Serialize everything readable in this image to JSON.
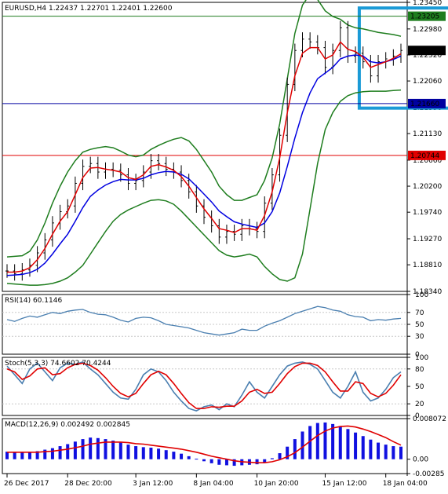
{
  "chart_data": {
    "type": "line",
    "symbol": "EURUSD",
    "timeframe": "H4",
    "header": "EURUSD,H4  1.22437 1.22701 1.22401 1.22600",
    "x_ticks": [
      "26 Dec 2017",
      "28 Dec 20:00",
      "3 Jan 12:00",
      "8 Jan 04:00",
      "10 Jan 20:00",
      "15 Jan 12:00",
      "18 Jan 04:00"
    ],
    "price_axis": {
      "ylim": [
        1.1834,
        1.2345
      ],
      "ticks": [
        {
          "label": "1.23450",
          "value": 1.2345
        },
        {
          "label": "1.22980",
          "value": 1.2298
        },
        {
          "label": "1.22520",
          "value": 1.2252
        },
        {
          "label": "1.22060",
          "value": 1.2206
        },
        {
          "label": "1.21590",
          "value": 1.2159
        },
        {
          "label": "1.21130",
          "value": 1.2113
        },
        {
          "label": "1.20660",
          "value": 1.2066
        },
        {
          "label": "1.20200",
          "value": 1.202
        },
        {
          "label": "1.19740",
          "value": 1.1974
        },
        {
          "label": "1.19270",
          "value": 1.1927
        },
        {
          "label": "1.18810",
          "value": 1.1881
        },
        {
          "label": "1.18340",
          "value": 1.1834
        }
      ]
    },
    "levels": [
      {
        "label": "1.23205",
        "value": 1.23205,
        "color": "#1e7d1e",
        "bg": "#1e7d1e"
      },
      {
        "label": "1.22600",
        "value": 1.226,
        "color": "#000000",
        "bg": "#000000"
      },
      {
        "label": "1.21660",
        "value": 1.2166,
        "color": "#0000a0",
        "bg": "#0000a0"
      },
      {
        "label": "1.20744",
        "value": 1.20744,
        "color": "#e00000",
        "bg": "#e00000"
      }
    ],
    "highlight_box": {
      "x_from": 46.5,
      "x_to": 82,
      "y_from": 1.2335,
      "y_to": 1.2158,
      "color": "#1a9ad6"
    },
    "price": {
      "close": [
        1.187,
        1.1865,
        1.1872,
        1.188,
        1.1902,
        1.1925,
        1.1955,
        1.1975,
        1.1985,
        1.2025,
        1.2055,
        1.206,
        1.2045,
        1.205,
        1.2048,
        1.204,
        1.2025,
        1.203,
        1.2045,
        1.2065,
        1.206,
        1.205,
        1.2045,
        1.203,
        1.201,
        1.1985,
        1.1965,
        1.195,
        1.193,
        1.194,
        1.1935,
        1.195,
        1.1945,
        1.194,
        1.199,
        1.204,
        1.211,
        1.22,
        1.226,
        1.228,
        1.2275,
        1.2265,
        1.223,
        1.226,
        1.23,
        1.225,
        1.2255,
        1.224,
        1.2215,
        1.224,
        1.2245,
        1.225,
        1.226
      ],
      "ma_fast": [
        1.1868,
        1.1868,
        1.187,
        1.1876,
        1.189,
        1.191,
        1.1935,
        1.1958,
        1.1975,
        1.2005,
        1.2035,
        1.2052,
        1.2053,
        1.205,
        1.2048,
        1.2045,
        1.2035,
        1.2032,
        1.204,
        1.2055,
        1.2058,
        1.2054,
        1.2048,
        1.2037,
        1.202,
        1.2,
        1.198,
        1.1963,
        1.1945,
        1.1942,
        1.1938,
        1.1945,
        1.1945,
        1.1942,
        1.1968,
        1.201,
        1.207,
        1.215,
        1.2215,
        1.2255,
        1.2265,
        1.2265,
        1.2245,
        1.2252,
        1.2275,
        1.2262,
        1.2258,
        1.2248,
        1.223,
        1.2235,
        1.224,
        1.2246,
        1.2254
      ],
      "ma_slow": [
        1.1862,
        1.1863,
        1.1864,
        1.1867,
        1.1873,
        1.1884,
        1.19,
        1.1918,
        1.1935,
        1.1958,
        1.1982,
        1.2002,
        1.2013,
        1.2022,
        1.2028,
        1.2032,
        1.2031,
        1.2031,
        1.2034,
        1.204,
        1.2044,
        1.2046,
        1.2045,
        1.2041,
        1.2033,
        1.202,
        1.2006,
        1.1992,
        1.1976,
        1.1966,
        1.1957,
        1.1953,
        1.195,
        1.1947,
        1.1955,
        1.1975,
        1.2008,
        1.2055,
        1.2105,
        1.215,
        1.2185,
        1.221,
        1.222,
        1.223,
        1.2245,
        1.225,
        1.2252,
        1.225,
        1.224,
        1.2238,
        1.224,
        1.2244,
        1.225
      ],
      "bb_upper": [
        1.1895,
        1.1896,
        1.1897,
        1.1905,
        1.1925,
        1.1955,
        1.199,
        1.202,
        1.2045,
        1.2065,
        1.208,
        1.2085,
        1.2088,
        1.209,
        1.2088,
        1.2082,
        1.2075,
        1.2072,
        1.2075,
        1.2085,
        1.2092,
        1.2098,
        1.2103,
        1.2106,
        1.21,
        1.2085,
        1.2065,
        1.2045,
        1.202,
        1.2005,
        1.1995,
        1.1995,
        1.2,
        1.2005,
        1.203,
        1.207,
        1.213,
        1.221,
        1.229,
        1.234,
        1.236,
        1.235,
        1.233,
        1.232,
        1.2315,
        1.2305,
        1.23,
        1.2298,
        1.2295,
        1.2292,
        1.229,
        1.2288,
        1.2285
      ],
      "bb_lower": [
        1.1848,
        1.1847,
        1.1846,
        1.1845,
        1.1845,
        1.1846,
        1.1848,
        1.1852,
        1.1858,
        1.1868,
        1.188,
        1.19,
        1.192,
        1.194,
        1.1958,
        1.197,
        1.1978,
        1.1984,
        1.199,
        1.1995,
        1.1996,
        1.1994,
        1.1988,
        1.1976,
        1.1962,
        1.1948,
        1.1934,
        1.192,
        1.1906,
        1.1898,
        1.1895,
        1.1897,
        1.19,
        1.1895,
        1.1878,
        1.1865,
        1.1855,
        1.1852,
        1.1858,
        1.19,
        1.198,
        1.206,
        1.212,
        1.215,
        1.217,
        1.218,
        1.2185,
        1.2187,
        1.2188,
        1.2188,
        1.2188,
        1.2189,
        1.219
      ]
    },
    "rsi": {
      "label": "RSI(14) 60.1146",
      "ylim": [
        0,
        100
      ],
      "ticks": [
        {
          "label": "100",
          "value": 100
        },
        {
          "label": "70",
          "value": 70
        },
        {
          "label": "50",
          "value": 50
        },
        {
          "label": "30",
          "value": 30
        },
        {
          "label": "0",
          "value": 0
        }
      ],
      "values": [
        58,
        55,
        60,
        64,
        62,
        66,
        70,
        68,
        72,
        74,
        75,
        70,
        67,
        66,
        62,
        57,
        54,
        60,
        62,
        61,
        56,
        50,
        48,
        46,
        44,
        40,
        36,
        34,
        32,
        34,
        36,
        42,
        40,
        40,
        47,
        52,
        56,
        62,
        68,
        72,
        76,
        80,
        78,
        74,
        72,
        66,
        63,
        62,
        56,
        58,
        57,
        59,
        60
      ]
    },
    "stoch": {
      "label": "Stoch(5,3,3) 74.6602 70.4244",
      "ylim": [
        0,
        100
      ],
      "ticks": [
        {
          "label": "100",
          "value": 100
        },
        {
          "label": "80",
          "value": 80
        },
        {
          "label": "50",
          "value": 50
        },
        {
          "label": "20",
          "value": 20
        },
        {
          "label": "0",
          "value": 0
        }
      ],
      "main": [
        85,
        70,
        55,
        80,
        90,
        75,
        60,
        82,
        90,
        88,
        92,
        80,
        70,
        55,
        40,
        30,
        28,
        45,
        70,
        80,
        75,
        60,
        40,
        25,
        12,
        8,
        15,
        18,
        10,
        20,
        15,
        35,
        58,
        40,
        30,
        50,
        70,
        85,
        90,
        92,
        88,
        80,
        60,
        40,
        30,
        50,
        75,
        40,
        25,
        30,
        45,
        65,
        75
      ],
      "signal": [
        80,
        75,
        62,
        68,
        80,
        82,
        70,
        72,
        82,
        88,
        90,
        86,
        78,
        65,
        50,
        38,
        32,
        38,
        55,
        70,
        76,
        70,
        55,
        38,
        22,
        12,
        12,
        15,
        14,
        16,
        16,
        25,
        40,
        45,
        38,
        40,
        55,
        72,
        84,
        90,
        90,
        86,
        75,
        58,
        42,
        42,
        58,
        55,
        38,
        32,
        38,
        52,
        70
      ]
    },
    "macd": {
      "label": "MACD(12,26,9) 0.002492 0.002845",
      "ylim": [
        -0.00285,
        0.00807
      ],
      "ticks": [
        {
          "label": "0.008072",
          "value": 0.008072
        },
        {
          "label": "0.00",
          "value": 0.0
        },
        {
          "label": "-0.00285",
          "value": -0.00285
        }
      ],
      "histogram": [
        0.0015,
        0.0014,
        0.0013,
        0.0014,
        0.0016,
        0.0019,
        0.0022,
        0.0026,
        0.003,
        0.0035,
        0.004,
        0.0043,
        0.0042,
        0.004,
        0.0037,
        0.0033,
        0.0029,
        0.0026,
        0.0024,
        0.0023,
        0.0021,
        0.0018,
        0.0015,
        0.0011,
        0.0006,
        0.0001,
        -0.0004,
        -0.0008,
        -0.0011,
        -0.0012,
        -0.0013,
        -0.0012,
        -0.0011,
        -0.001,
        -0.0006,
        0.0002,
        0.0012,
        0.0025,
        0.004,
        0.0055,
        0.0066,
        0.0072,
        0.0073,
        0.007,
        0.0066,
        0.006,
        0.0053,
        0.0046,
        0.0039,
        0.0033,
        0.0029,
        0.0026,
        0.0025
      ],
      "signal": [
        0.0014,
        0.0014,
        0.0014,
        0.0014,
        0.0014,
        0.0015,
        0.0016,
        0.0018,
        0.002,
        0.0023,
        0.0026,
        0.003,
        0.0032,
        0.0034,
        0.0034,
        0.0034,
        0.0033,
        0.0031,
        0.003,
        0.0028,
        0.0026,
        0.0024,
        0.0022,
        0.002,
        0.0017,
        0.0014,
        0.001,
        0.0006,
        0.0003,
        0.0,
        -0.0003,
        -0.0005,
        -0.0006,
        -0.0007,
        -0.0007,
        -0.0005,
        -0.0001,
        0.0005,
        0.0013,
        0.0024,
        0.0036,
        0.0047,
        0.0056,
        0.0062,
        0.0065,
        0.0066,
        0.0064,
        0.006,
        0.0055,
        0.0049,
        0.0043,
        0.0035,
        0.0028
      ]
    },
    "colors": {
      "price_bars": "#000000",
      "ma_fast": "#e00000",
      "ma_slow": "#0000e0",
      "bollinger": "#1e7d1e",
      "rsi_line": "#4a7fb0",
      "stoch_main": "#4a7fb0",
      "stoch_signal": "#e00000",
      "macd_hist": "#1010e0",
      "macd_signal": "#e00000",
      "frame": "#000000",
      "grid": "#c8c8c8"
    }
  }
}
